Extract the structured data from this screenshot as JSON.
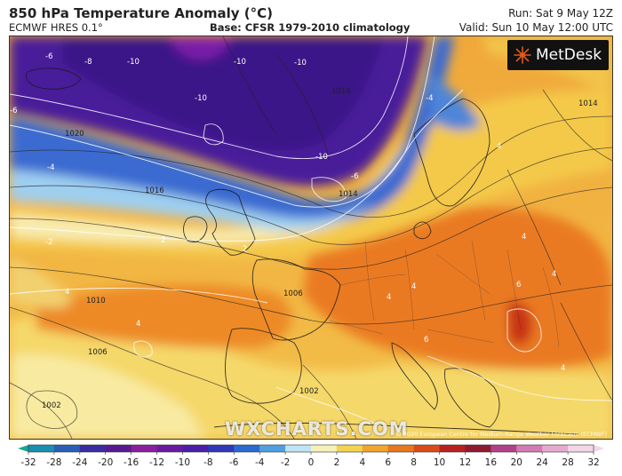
{
  "header": {
    "title": "850 hPa Temperature Anomaly (°C)",
    "model": "ECMWF HRES 0.1°",
    "base": "Base: CFSR 1979-2010 climatology",
    "run": "Run: Sat 9 May 12Z",
    "valid": "Valid: Sun 10 May 12:00 UTC"
  },
  "logo": {
    "text": "MetDesk",
    "icon": "metdesk-logo-icon"
  },
  "watermark": "WXCHARTS.COM",
  "copyright": "© 2020 European Centre for Medium-Range Weather Forecasts (ECMWF)",
  "map": {
    "anomaly_labels": [
      "-6",
      "-8",
      "-10",
      "-10",
      "-10",
      "-6",
      "-10",
      "-4",
      "-10",
      "-6",
      "-4",
      "-2",
      "4",
      "4",
      "4",
      "2",
      "2",
      "4",
      "4",
      "4",
      "4",
      "6",
      "6",
      "4"
    ],
    "isobar_labels": [
      "1020",
      "1016",
      "1014",
      "1018",
      "1010",
      "1006",
      "1006",
      "1002",
      "1002",
      "1014"
    ]
  },
  "colorbar": {
    "ticks": [
      "-32",
      "-28",
      "-24",
      "-20",
      "-16",
      "-12",
      "-10",
      "-8",
      "-6",
      "-4",
      "-2",
      "0",
      "2",
      "4",
      "6",
      "8",
      "10",
      "12",
      "16",
      "20",
      "24",
      "28",
      "32"
    ],
    "colors": [
      "#1aa88a",
      "#1a8fb0",
      "#2a5fb5",
      "#3a2ba0",
      "#58198f",
      "#8a1f9e",
      "#6a1aa0",
      "#4a1ea6",
      "#3038b8",
      "#2a6ad0",
      "#4fa0e0",
      "#bfe4f4",
      "#f7f0b8",
      "#f3d34f",
      "#f1a52a",
      "#e9771c",
      "#d94c18",
      "#b8221e",
      "#8e1a2e",
      "#b2418a",
      "#d27bb4",
      "#e6a9cf",
      "#f3d6e8"
    ]
  }
}
